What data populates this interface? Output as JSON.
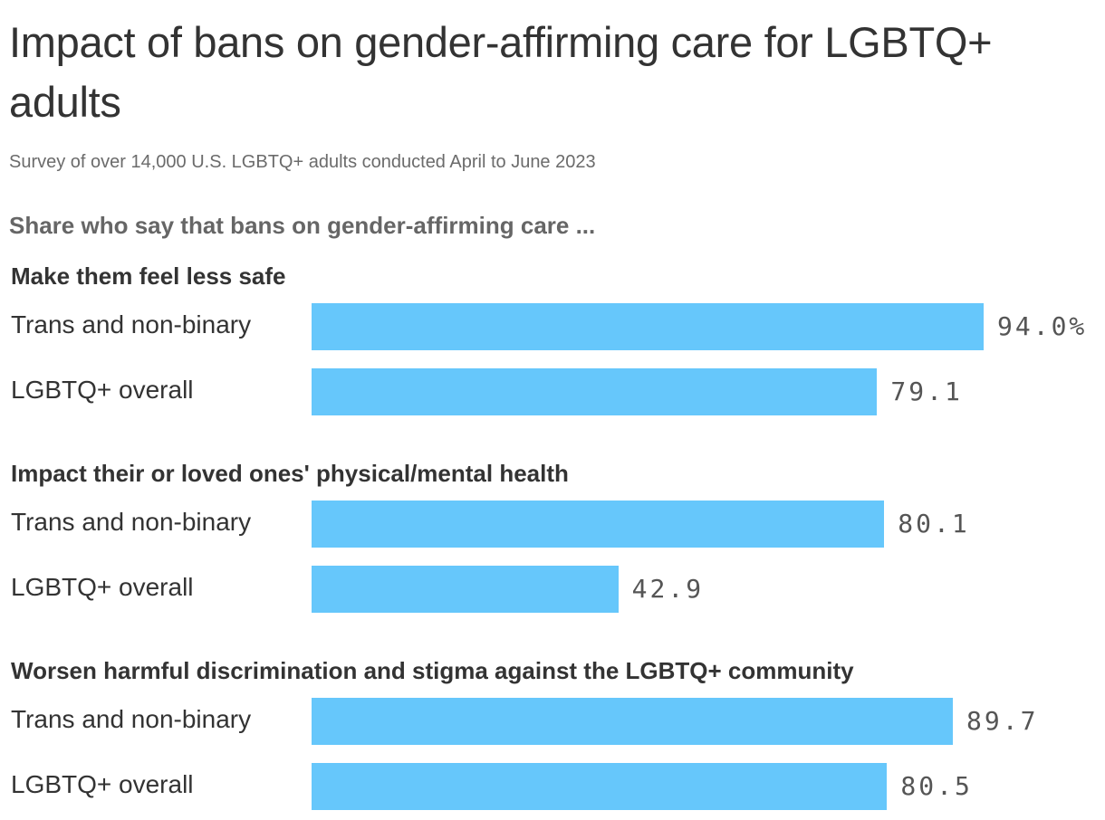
{
  "chart_data": {
    "type": "bar",
    "orientation": "horizontal",
    "title": "Impact of bans on gender-affirming care for LGBTQ+ adults",
    "subtitle": "Survey of over 14,000 U.S. LGBTQ+ adults conducted April to June 2023",
    "question": "Share who say that bans on gender-affirming care ...",
    "value_format": {
      "first_suffix": "%",
      "decimals": 1
    },
    "xlim": [
      0,
      100
    ],
    "colors": {
      "bar": "#66c7fb"
    },
    "groups": [
      {
        "title": "Make them feel less safe",
        "rows": [
          {
            "label": "Trans and non-binary",
            "value": 94.0,
            "value_label": "94.0%"
          },
          {
            "label": "LGBTQ+ overall",
            "value": 79.1,
            "value_label": "79.1"
          }
        ]
      },
      {
        "title": "Impact their or loved ones' physical/mental health",
        "rows": [
          {
            "label": "Trans and non-binary",
            "value": 80.1,
            "value_label": "80.1"
          },
          {
            "label": "LGBTQ+ overall",
            "value": 42.9,
            "value_label": "42.9"
          }
        ]
      },
      {
        "title": "Worsen harmful discrimination and stigma against the LGBTQ+ community",
        "rows": [
          {
            "label": "Trans and non-binary",
            "value": 89.7,
            "value_label": "89.7"
          },
          {
            "label": "LGBTQ+ overall",
            "value": 80.5,
            "value_label": "80.5"
          }
        ]
      }
    ]
  }
}
